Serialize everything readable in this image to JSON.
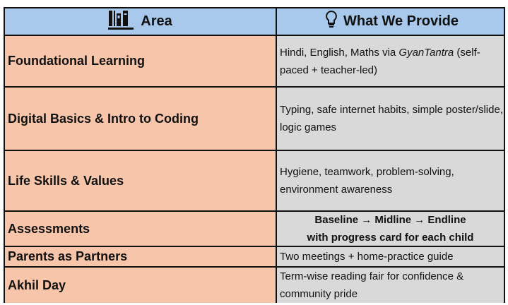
{
  "header": {
    "area": "Area",
    "provide": "What We Provide",
    "area_icon": "books-icon",
    "provide_icon": "lightbulb-icon"
  },
  "rows": [
    {
      "area": "Foundational Learning",
      "provide_pre": "Hindi, English, Maths via ",
      "provide_em": "GyanTantra",
      "provide_post": "  (self-paced + teacher-led)"
    },
    {
      "area": "Digital Basics & Intro to Coding",
      "provide": "Typing, safe internet habits, simple poster/slide, logic games"
    },
    {
      "area": "Life Skills & Values",
      "provide": "Hygiene, teamwork, problem-solving, environment awareness"
    },
    {
      "area": "Assessments",
      "provide": "Baseline → Midline → Endline with progress card for each child"
    },
    {
      "area": "Parents as Partners",
      "provide": "Two meetings + home-practice guide"
    },
    {
      "area": "Akhil Day",
      "provide": "Term-wise reading fair for confidence & community pride"
    }
  ],
  "colors": {
    "header": "#a8c8ec",
    "area": "#f7c6aa",
    "provide": "#d9d9d9"
  }
}
